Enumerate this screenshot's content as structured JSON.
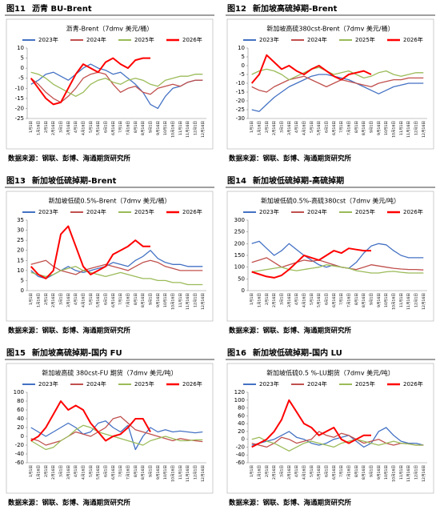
{
  "figures": [
    {
      "number": "图11",
      "heading": "沥青 BU-Brent",
      "source": "数据来源：钢联、彭博、海通期货研究所"
    },
    {
      "number": "图12",
      "heading": "新加坡高硫掉期-Brent",
      "source": "数据来源：钢联、彭博、海通期货研究所"
    },
    {
      "number": "图13",
      "heading": "新加坡低硫掉期-Brent",
      "source": "数据来源：钢联、彭博、海通期货研究所"
    },
    {
      "number": "图14",
      "heading": "新加坡低硫掉期-高硫掉期",
      "source": "数据来源：钢联、彭博、海通期货研究所"
    },
    {
      "number": "图15",
      "heading": "新加坡高硫掉期-国内 FU",
      "source": "数据来源：钢联、彭博、海通期货研究所"
    },
    {
      "number": "图16",
      "heading": "新加坡低硫掉期-国内 LU",
      "source": "数据来源：钢联、彭博、海通期货研究所"
    }
  ],
  "chart_data": [
    {
      "type": "line",
      "title": "沥青-Brent（7dmv 美元/桶）",
      "categories": [
        "1月1日",
        "1月16日",
        "2月1日",
        "2月16日",
        "3月1日",
        "3月16日",
        "4月1日",
        "4月16日",
        "5月1日",
        "5月16日",
        "6月1日",
        "6月16日",
        "7月1日",
        "7月16日",
        "8月1日",
        "8月16日",
        "9月1日",
        "9月16日",
        "10月1日",
        "10月16日",
        "11月1日",
        "11月16日",
        "12月1日",
        "12月16日"
      ],
      "ylim": [
        -25,
        10
      ],
      "yticks": [
        10,
        5,
        0,
        -5,
        -10,
        -15,
        -20,
        -25
      ],
      "series": [
        {
          "name": "2023年",
          "color": "#4472c4",
          "values": [
            -8,
            -6,
            -3,
            -2,
            -4,
            -6,
            -3,
            0,
            2,
            0,
            -1,
            -3,
            -2,
            -5,
            -8,
            -12,
            -18,
            -20,
            -14,
            -10,
            -9,
            -7,
            -6,
            -6
          ]
        },
        {
          "name": "2024年",
          "color": "#c0504d",
          "values": [
            -5,
            -8,
            -12,
            -15,
            -17,
            -14,
            -10,
            -5,
            -3,
            -2,
            -3,
            -8,
            -12,
            -10,
            -9,
            -12,
            -13,
            -10,
            -9,
            -8,
            -9,
            -7,
            -6,
            -6
          ]
        },
        {
          "name": "2025年",
          "color": "#9bbb59",
          "values": [
            -2,
            -3,
            -5,
            -8,
            -10,
            -12,
            -14,
            -12,
            -8,
            -6,
            -5,
            -7,
            -8,
            -6,
            -5,
            -6,
            -8,
            -9,
            -6,
            -5,
            -4,
            -4,
            -3,
            -3
          ]
        },
        {
          "name": "2026年",
          "color": "#ff0000",
          "values": [
            -5,
            -10,
            -15,
            -18,
            -17,
            -10,
            -3,
            2,
            0,
            -2,
            3,
            5,
            2,
            0,
            4,
            5,
            5,
            null,
            null,
            null,
            null,
            null,
            null,
            null
          ]
        }
      ]
    },
    {
      "type": "line",
      "title": "新加坡高硫380cst-Brent（7dmv 美元/桶）",
      "categories": [
        "1月1日",
        "1月16日",
        "2月1日",
        "2月16日",
        "3月1日",
        "3月16日",
        "4月1日",
        "4月16日",
        "5月1日",
        "5月16日",
        "6月1日",
        "6月16日",
        "7月1日",
        "7月16日",
        "8月1日",
        "8月16日",
        "9月1日",
        "9月16日",
        "10月1日",
        "10月16日",
        "11月1日",
        "11月16日",
        "12月1日",
        "12月16日"
      ],
      "ylim": [
        -30,
        10
      ],
      "yticks": [
        10,
        5,
        0,
        -5,
        -10,
        -15,
        -20,
        -25,
        -30
      ],
      "series": [
        {
          "name": "2023年",
          "color": "#4472c4",
          "values": [
            -25,
            -26,
            -22,
            -18,
            -15,
            -12,
            -10,
            -8,
            -6,
            -5,
            -5,
            -6,
            -7,
            -8,
            -10,
            -12,
            -14,
            -16,
            -14,
            -12,
            -11,
            -10,
            -10,
            -10
          ]
        },
        {
          "name": "2024年",
          "color": "#c0504d",
          "values": [
            -12,
            -14,
            -15,
            -12,
            -10,
            -8,
            -7,
            -6,
            -8,
            -10,
            -12,
            -10,
            -8,
            -9,
            -10,
            -11,
            -12,
            -10,
            -9,
            -8,
            -8,
            -7,
            -7,
            -7
          ]
        },
        {
          "name": "2025年",
          "color": "#9bbb59",
          "values": [
            -5,
            -3,
            -2,
            -3,
            -5,
            -8,
            -6,
            -4,
            -2,
            -1,
            -3,
            -5,
            -4,
            -3,
            -5,
            -7,
            -6,
            -4,
            -3,
            -5,
            -6,
            -5,
            -4,
            -4
          ]
        },
        {
          "name": "2026年",
          "color": "#ff0000",
          "values": [
            -10,
            -5,
            6,
            2,
            -2,
            0,
            -3,
            -5,
            -2,
            0,
            -3,
            -6,
            -8,
            -5,
            -4,
            -3,
            -5,
            null,
            null,
            null,
            null,
            null,
            null,
            null
          ]
        }
      ]
    },
    {
      "type": "line",
      "title": "新加坡低硫0.5%-Brent（7dmv 美元/桶）",
      "categories": [
        "1月1日",
        "1月16日",
        "2月1日",
        "2月16日",
        "3月1日",
        "3月16日",
        "4月1日",
        "4月16日",
        "5月1日",
        "5月16日",
        "6月1日",
        "6月16日",
        "7月1日",
        "7月16日",
        "8月1日",
        "8月16日",
        "9月1日",
        "9月16日",
        "10月1日",
        "10月16日",
        "11月1日",
        "11月16日",
        "12月1日",
        "12月16日"
      ],
      "ylim": [
        0,
        35
      ],
      "yticks": [
        35,
        30,
        25,
        20,
        15,
        10,
        5,
        0
      ],
      "series": [
        {
          "name": "2023年",
          "color": "#4472c4",
          "values": [
            10,
            7,
            6,
            8,
            10,
            12,
            10,
            9,
            10,
            11,
            12,
            14,
            13,
            12,
            15,
            17,
            20,
            16,
            14,
            13,
            13,
            12,
            12,
            12
          ]
        },
        {
          "name": "2024年",
          "color": "#c0504d",
          "values": [
            13,
            14,
            15,
            12,
            10,
            9,
            8,
            10,
            11,
            12,
            13,
            12,
            11,
            10,
            12,
            14,
            15,
            14,
            12,
            11,
            10,
            10,
            10,
            10
          ]
        },
        {
          "name": "2025年",
          "color": "#9bbb59",
          "values": [
            9,
            8,
            7,
            8,
            10,
            11,
            12,
            10,
            9,
            8,
            7,
            8,
            9,
            8,
            7,
            6,
            6,
            5,
            5,
            4,
            4,
            3,
            3,
            3
          ]
        },
        {
          "name": "2026年",
          "color": "#ff0000",
          "values": [
            12,
            8,
            6,
            10,
            28,
            32,
            22,
            12,
            8,
            10,
            12,
            18,
            20,
            22,
            25,
            22,
            22,
            null,
            null,
            null,
            null,
            null,
            null,
            null
          ]
        }
      ]
    },
    {
      "type": "line",
      "title": "新加坡低硫0.5%-高硫380cst（7dmv 美元/吨）",
      "categories": [
        "1月1日",
        "1月16日",
        "2月1日",
        "2月16日",
        "3月1日",
        "3月16日",
        "4月1日",
        "4月16日",
        "5月1日",
        "5月16日",
        "6月1日",
        "6月16日",
        "7月1日",
        "7月16日",
        "8月1日",
        "8月16日",
        "9月1日",
        "9月16日",
        "10月1日",
        "10月16日",
        "11月1日",
        "11月16日",
        "12月1日",
        "12月16日"
      ],
      "ylim": [
        0,
        300
      ],
      "yticks": [
        300,
        250,
        200,
        150,
        100,
        50,
        0
      ],
      "series": [
        {
          "name": "2023年",
          "color": "#4472c4",
          "values": [
            200,
            210,
            180,
            150,
            170,
            200,
            175,
            150,
            130,
            110,
            100,
            110,
            100,
            95,
            120,
            160,
            190,
            200,
            195,
            170,
            150,
            140,
            140,
            140
          ]
        },
        {
          "name": "2024年",
          "color": "#c0504d",
          "values": [
            120,
            130,
            140,
            120,
            100,
            110,
            120,
            130,
            125,
            130,
            120,
            110,
            100,
            95,
            90,
            100,
            110,
            105,
            100,
            95,
            92,
            90,
            90,
            88
          ]
        },
        {
          "name": "2025年",
          "color": "#9bbb59",
          "values": [
            80,
            85,
            90,
            95,
            100,
            90,
            85,
            90,
            95,
            100,
            110,
            105,
            100,
            95,
            85,
            80,
            75,
            75,
            80,
            82,
            78,
            75,
            75,
            75
          ]
        },
        {
          "name": "2026年",
          "color": "#ff0000",
          "values": [
            80,
            70,
            60,
            55,
            65,
            90,
            120,
            150,
            140,
            130,
            150,
            170,
            160,
            180,
            175,
            170,
            170,
            null,
            null,
            null,
            null,
            null,
            null,
            null
          ]
        }
      ]
    },
    {
      "type": "line",
      "title": "新加坡高硫 380cst-FU 期货（7dmv 美元/吨）",
      "categories": [
        "1月1日",
        "1月16日",
        "2月1日",
        "2月16日",
        "3月1日",
        "3月16日",
        "4月1日",
        "4月16日",
        "5月1日",
        "5月16日",
        "6月1日",
        "6月16日",
        "7月1日",
        "7月16日",
        "8月1日",
        "8月16日",
        "9月1日",
        "9月16日",
        "10月1日",
        "10月16日",
        "11月1日",
        "11月16日",
        "12月1日",
        "12月16日"
      ],
      "ylim": [
        -60,
        100
      ],
      "yticks": [
        100,
        80,
        60,
        40,
        20,
        0,
        -20,
        -40,
        -60
      ],
      "series": [
        {
          "name": "2023年",
          "color": "#4472c4",
          "values": [
            20,
            10,
            0,
            10,
            20,
            30,
            20,
            5,
            10,
            30,
            35,
            20,
            10,
            25,
            -30,
            0,
            20,
            10,
            15,
            10,
            12,
            10,
            8,
            10
          ]
        },
        {
          "name": "2024年",
          "color": "#c0504d",
          "values": [
            -5,
            -10,
            -20,
            -15,
            -10,
            0,
            10,
            5,
            0,
            10,
            20,
            40,
            45,
            30,
            15,
            10,
            5,
            0,
            -5,
            -10,
            -5,
            -8,
            -10,
            -12
          ]
        },
        {
          "name": "2025年",
          "color": "#9bbb59",
          "values": [
            -10,
            -20,
            -30,
            -25,
            -10,
            0,
            15,
            25,
            20,
            10,
            5,
            0,
            -5,
            -10,
            -15,
            -20,
            -10,
            -5,
            0,
            -5,
            -10,
            -10,
            -8,
            -8
          ]
        },
        {
          "name": "2026年",
          "color": "#ff0000",
          "values": [
            -10,
            0,
            20,
            50,
            80,
            60,
            70,
            60,
            30,
            10,
            -10,
            0,
            5,
            20,
            40,
            40,
            10,
            null,
            null,
            null,
            null,
            null,
            null,
            null
          ]
        }
      ]
    },
    {
      "type": "line",
      "title": "新加坡低硫0.5 %-LU期货（7dmv 美元/吨）",
      "categories": [
        "1月1日",
        "1月16日",
        "2月1日",
        "2月16日",
        "3月1日",
        "3月16日",
        "4月1日",
        "4月16日",
        "5月1日",
        "5月16日",
        "6月1日",
        "6月16日",
        "7月1日",
        "7月16日",
        "8月1日",
        "8月16日",
        "9月1日",
        "9月16日",
        "10月1日",
        "10月16日",
        "11月1日",
        "11月16日",
        "12月1日",
        "12月16日"
      ],
      "ylim": [
        -60,
        120
      ],
      "yticks": [
        120,
        100,
        80,
        60,
        40,
        20,
        0,
        -20,
        -40,
        -60
      ],
      "series": [
        {
          "name": "2023年",
          "color": "#4472c4",
          "values": [
            -15,
            -10,
            -5,
            0,
            10,
            20,
            5,
            0,
            -10,
            -15,
            -10,
            0,
            5,
            10,
            -5,
            -20,
            -10,
            20,
            30,
            10,
            -5,
            -10,
            -10,
            -15
          ]
        },
        {
          "name": "2024年",
          "color": "#c0504d",
          "values": [
            -10,
            -15,
            -20,
            -10,
            5,
            0,
            -10,
            -5,
            0,
            20,
            10,
            5,
            15,
            10,
            0,
            -10,
            -5,
            0,
            -10,
            -15,
            -10,
            -12,
            -15,
            -15
          ]
        },
        {
          "name": "2025年",
          "color": "#9bbb59",
          "values": [
            0,
            5,
            -5,
            -10,
            -20,
            -30,
            -20,
            -10,
            -5,
            -10,
            -15,
            -20,
            -10,
            -5,
            0,
            -5,
            -10,
            -15,
            -10,
            -5,
            -10,
            -12,
            -15,
            -15
          ]
        },
        {
          "name": "2026年",
          "color": "#ff0000",
          "values": [
            -20,
            -10,
            0,
            20,
            50,
            100,
            70,
            40,
            30,
            10,
            20,
            30,
            0,
            -10,
            0,
            10,
            10,
            null,
            null,
            null,
            null,
            null,
            null,
            null
          ]
        }
      ]
    }
  ]
}
